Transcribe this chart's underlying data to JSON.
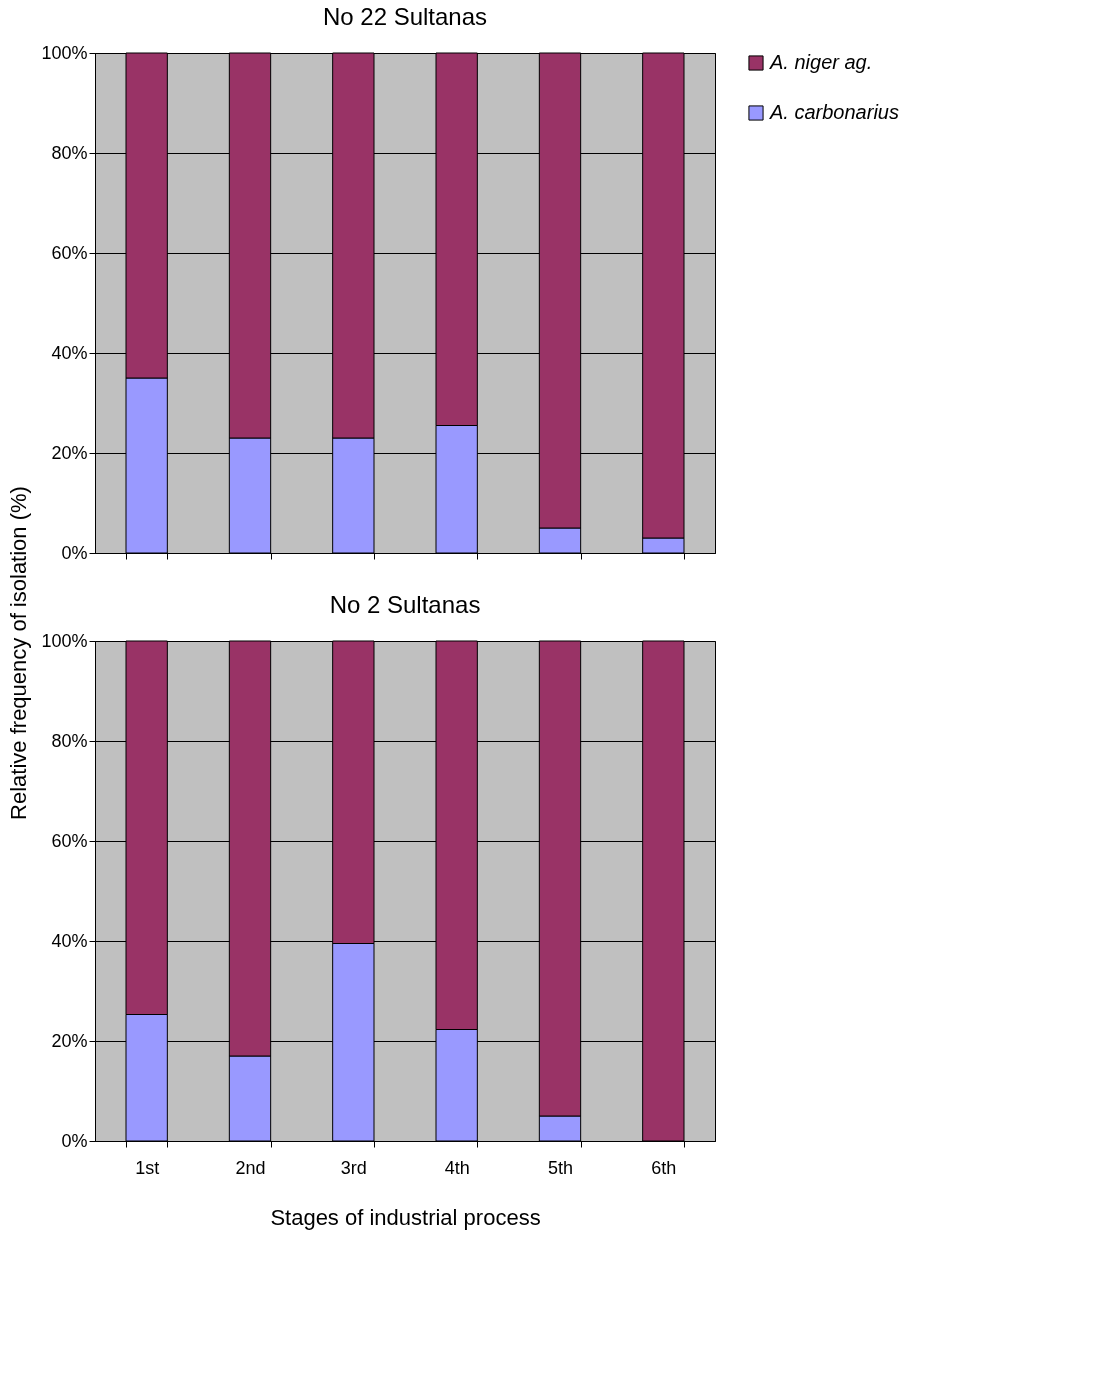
{
  "chart_data": [
    {
      "type": "bar",
      "title": "No 22 Sultanas",
      "ylabel": "Relative frequency of isolation (%)",
      "categories": [
        null,
        null,
        null,
        null,
        null,
        null
      ],
      "stacked": true,
      "series": [
        {
          "name": "A. carbonarius",
          "color": "#9999ff",
          "values": [
            35,
            23,
            23,
            25.5,
            5,
            3
          ]
        },
        {
          "name": "A. niger ag.",
          "color": "#993366",
          "values": [
            65,
            77,
            77,
            74.5,
            95,
            97
          ]
        }
      ],
      "ylim": [
        0,
        100
      ],
      "yticks": [
        {
          "value": 0,
          "label": "0%"
        },
        {
          "value": 20,
          "label": "20%"
        },
        {
          "value": 40,
          "label": "40%"
        },
        {
          "value": 60,
          "label": "60%"
        },
        {
          "value": 80,
          "label": "80%"
        },
        {
          "value": 100,
          "label": "100%"
        }
      ],
      "grid": "y",
      "legend": "right",
      "tick_labels": "y"
    },
    {
      "type": "bar",
      "title": "No 2 Sultanas",
      "xlabel": "Stages of industrial process",
      "categories": [
        "1st",
        "2nd",
        "3rd",
        "4th",
        "5th",
        "6th"
      ],
      "stacked": true,
      "series": [
        {
          "name": "A. carbonarius",
          "color": "#9999ff",
          "values": [
            25.3,
            17,
            39.5,
            22.3,
            5,
            0
          ]
        },
        {
          "name": "A. niger ag.",
          "color": "#993366",
          "values": [
            74.7,
            83,
            60.5,
            77.7,
            95,
            100
          ]
        }
      ],
      "ylim": [
        0,
        100
      ],
      "yticks": [
        {
          "value": 0,
          "label": "0%"
        },
        {
          "value": 20,
          "label": "20%"
        },
        {
          "value": 40,
          "label": "40%"
        },
        {
          "value": 60,
          "label": "60%"
        },
        {
          "value": 80,
          "label": "80%"
        },
        {
          "value": 100,
          "label": "100%"
        }
      ],
      "grid": "y",
      "legend": "right"
    }
  ]
}
